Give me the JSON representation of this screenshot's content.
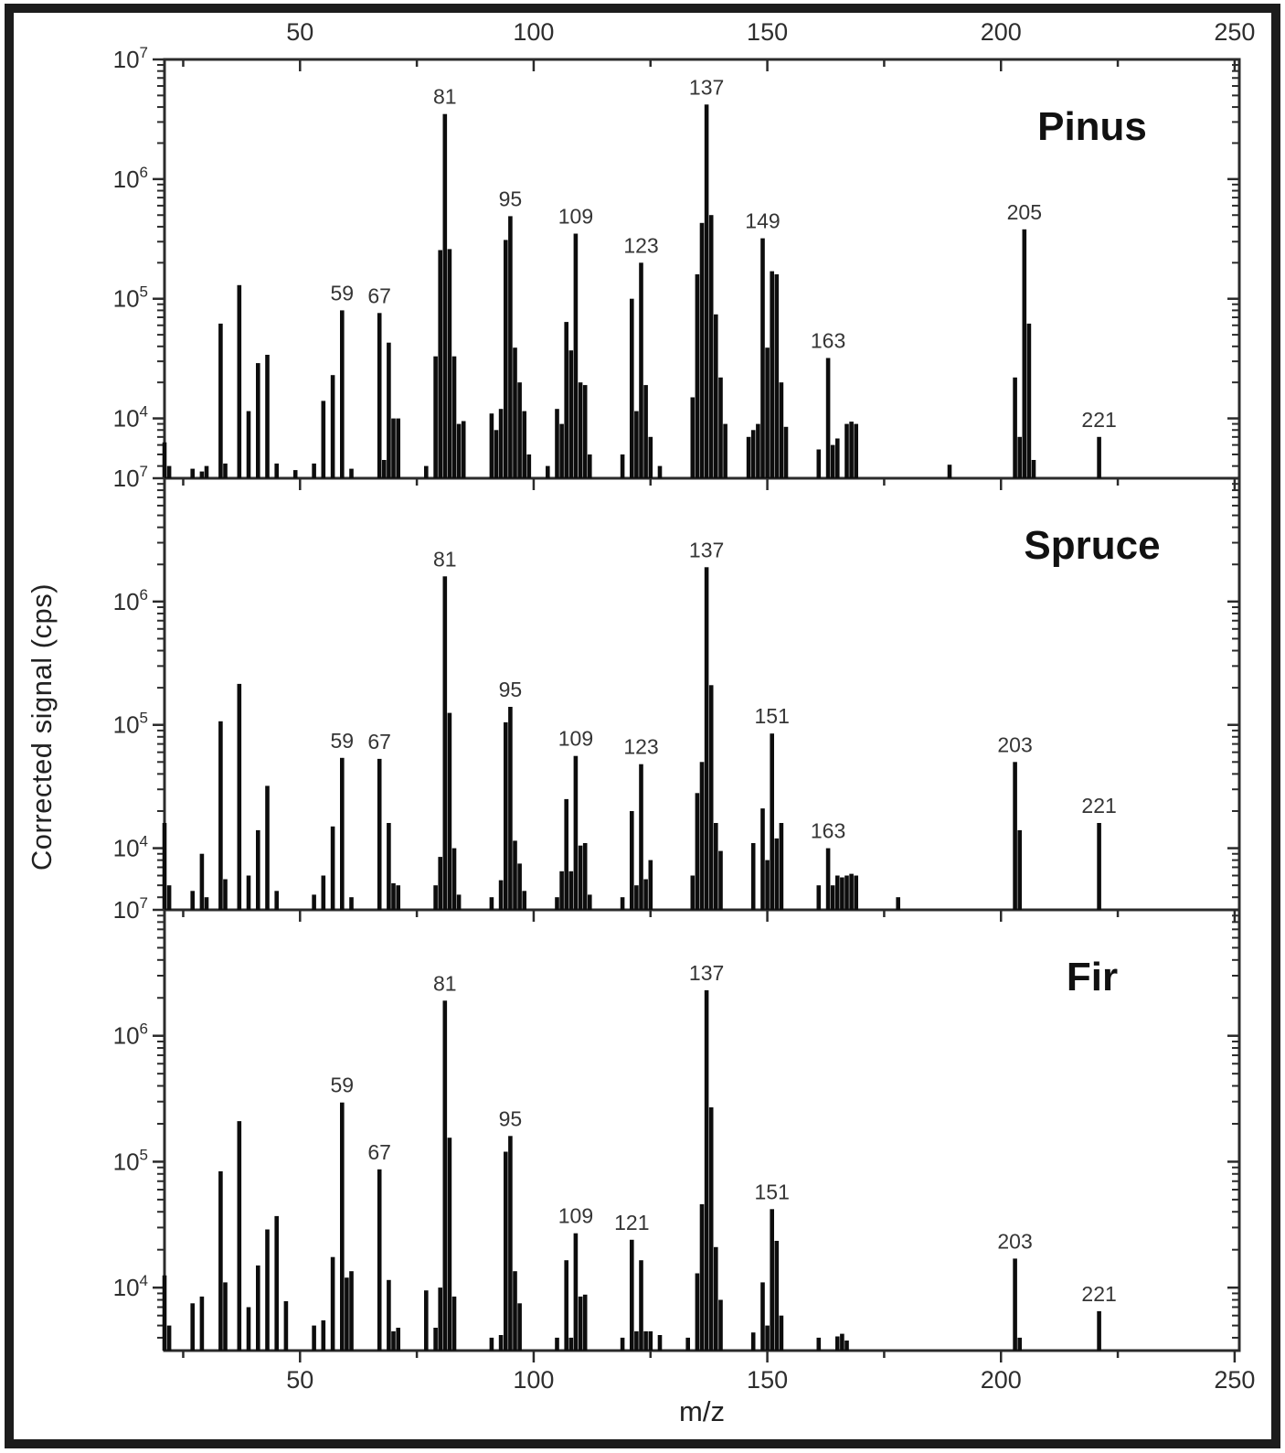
{
  "figure": {
    "xlabel": "m/z",
    "ylabel": "Corrected signal (cps)",
    "x_major_ticks": [
      50,
      100,
      150,
      200,
      250
    ],
    "x_minor_step": 25,
    "x_range": [
      21,
      251
    ],
    "y_log_range": [
      3.5,
      7
    ],
    "y_decades": [
      4,
      5,
      6,
      7
    ],
    "y_tick_base": "10",
    "grid": "off",
    "legend": "none",
    "colors": {
      "bar": "#0d0d0d",
      "axis": "#2b2b2b",
      "tick_text": "#2e2e2e",
      "peak_label_text": "#353535",
      "species_text": "#111111",
      "frame": "#1c1c1c",
      "background": "#ffffff"
    }
  },
  "chart_data": [
    {
      "type": "bar",
      "name": "Pinus",
      "x_field": "m/z",
      "y_field": "cps",
      "labeled_peaks": [
        59,
        67,
        81,
        95,
        109,
        123,
        137,
        149,
        163,
        205,
        221
      ],
      "peaks": [
        [
          21,
          6300
        ],
        [
          22,
          4000
        ],
        [
          27,
          3800
        ],
        [
          29,
          3600
        ],
        [
          30,
          4000
        ],
        [
          33,
          62000
        ],
        [
          34,
          4200
        ],
        [
          37,
          130000
        ],
        [
          39,
          11500
        ],
        [
          41,
          29000
        ],
        [
          43,
          34000
        ],
        [
          45,
          4200
        ],
        [
          49,
          3700
        ],
        [
          53,
          4200
        ],
        [
          55,
          14000
        ],
        [
          57,
          23000
        ],
        [
          59,
          80000
        ],
        [
          61,
          3800
        ],
        [
          67,
          76000
        ],
        [
          68,
          4500
        ],
        [
          69,
          43000
        ],
        [
          70,
          10000
        ],
        [
          71,
          10000
        ],
        [
          77,
          4000
        ],
        [
          79,
          33000
        ],
        [
          80,
          255000
        ],
        [
          81,
          3500000
        ],
        [
          82,
          260000
        ],
        [
          83,
          33000
        ],
        [
          84,
          9000
        ],
        [
          85,
          9500
        ],
        [
          91,
          11000
        ],
        [
          92,
          8000
        ],
        [
          93,
          12000
        ],
        [
          94,
          310000
        ],
        [
          95,
          490000
        ],
        [
          96,
          39000
        ],
        [
          97,
          20000
        ],
        [
          98,
          11500
        ],
        [
          99,
          5000
        ],
        [
          103,
          4000
        ],
        [
          105,
          12000
        ],
        [
          106,
          9000
        ],
        [
          107,
          64000
        ],
        [
          108,
          37000
        ],
        [
          109,
          350000
        ],
        [
          110,
          20000
        ],
        [
          111,
          19000
        ],
        [
          112,
          5000
        ],
        [
          119,
          5000
        ],
        [
          121,
          100000
        ],
        [
          122,
          11500
        ],
        [
          123,
          200000
        ],
        [
          124,
          19000
        ],
        [
          125,
          7000
        ],
        [
          127,
          4000
        ],
        [
          134,
          15000
        ],
        [
          135,
          160000
        ],
        [
          136,
          430000
        ],
        [
          137,
          4200000
        ],
        [
          138,
          500000
        ],
        [
          139,
          74000
        ],
        [
          140,
          22000
        ],
        [
          141,
          9000
        ],
        [
          146,
          7000
        ],
        [
          147,
          8000
        ],
        [
          148,
          9000
        ],
        [
          149,
          320000
        ],
        [
          150,
          39000
        ],
        [
          151,
          170000
        ],
        [
          152,
          160000
        ],
        [
          153,
          20000
        ],
        [
          154,
          8500
        ],
        [
          161,
          5500
        ],
        [
          163,
          32000
        ],
        [
          164,
          6000
        ],
        [
          165,
          6800
        ],
        [
          167,
          9000
        ],
        [
          168,
          9400
        ],
        [
          169,
          9000
        ],
        [
          189,
          4100
        ],
        [
          203,
          22000
        ],
        [
          204,
          7000
        ],
        [
          205,
          380000
        ],
        [
          206,
          62000
        ],
        [
          207,
          4500
        ],
        [
          221,
          7000
        ]
      ]
    },
    {
      "type": "bar",
      "name": "Spruce",
      "x_field": "m/z",
      "y_field": "cps",
      "labeled_peaks": [
        59,
        67,
        81,
        95,
        109,
        123,
        137,
        151,
        163,
        203,
        221
      ],
      "peaks": [
        [
          21,
          16000
        ],
        [
          22,
          5000
        ],
        [
          27,
          4500
        ],
        [
          29,
          9000
        ],
        [
          30,
          4000
        ],
        [
          33,
          107000
        ],
        [
          34,
          5600
        ],
        [
          37,
          215000
        ],
        [
          39,
          6000
        ],
        [
          41,
          14000
        ],
        [
          43,
          32000
        ],
        [
          45,
          4500
        ],
        [
          53,
          4200
        ],
        [
          55,
          6000
        ],
        [
          57,
          15000
        ],
        [
          59,
          54000
        ],
        [
          61,
          4000
        ],
        [
          67,
          53000
        ],
        [
          69,
          16000
        ],
        [
          70,
          5200
        ],
        [
          71,
          5000
        ],
        [
          79,
          5000
        ],
        [
          80,
          8500
        ],
        [
          81,
          1600000
        ],
        [
          82,
          125000
        ],
        [
          83,
          10000
        ],
        [
          84,
          4200
        ],
        [
          91,
          4000
        ],
        [
          93,
          5500
        ],
        [
          94,
          105000
        ],
        [
          95,
          140000
        ],
        [
          96,
          11500
        ],
        [
          97,
          7500
        ],
        [
          98,
          4500
        ],
        [
          105,
          4000
        ],
        [
          106,
          6500
        ],
        [
          107,
          25000
        ],
        [
          108,
          6500
        ],
        [
          109,
          56000
        ],
        [
          110,
          10500
        ],
        [
          111,
          11000
        ],
        [
          112,
          4200
        ],
        [
          119,
          4000
        ],
        [
          121,
          20000
        ],
        [
          122,
          5000
        ],
        [
          123,
          48000
        ],
        [
          124,
          5600
        ],
        [
          125,
          8000
        ],
        [
          134,
          6000
        ],
        [
          135,
          28000
        ],
        [
          136,
          50000
        ],
        [
          137,
          1900000
        ],
        [
          138,
          210000
        ],
        [
          139,
          16000
        ],
        [
          140,
          9500
        ],
        [
          147,
          11000
        ],
        [
          149,
          21000
        ],
        [
          150,
          8000
        ],
        [
          151,
          85000
        ],
        [
          152,
          12000
        ],
        [
          153,
          16000
        ],
        [
          161,
          5000
        ],
        [
          163,
          10000
        ],
        [
          164,
          5000
        ],
        [
          165,
          6000
        ],
        [
          166,
          5800
        ],
        [
          167,
          6000
        ],
        [
          168,
          6200
        ],
        [
          169,
          6000
        ],
        [
          178,
          4000
        ],
        [
          203,
          50000
        ],
        [
          204,
          14000
        ],
        [
          221,
          16000
        ]
      ]
    },
    {
      "type": "bar",
      "name": "Fir",
      "x_field": "m/z",
      "y_field": "cps",
      "labeled_peaks": [
        59,
        67,
        81,
        95,
        109,
        121,
        137,
        151,
        203,
        221
      ],
      "peaks": [
        [
          21,
          12500
        ],
        [
          22,
          5000
        ],
        [
          27,
          7500
        ],
        [
          29,
          8500
        ],
        [
          33,
          84000
        ],
        [
          34,
          11000
        ],
        [
          37,
          210000
        ],
        [
          39,
          7000
        ],
        [
          41,
          15000
        ],
        [
          43,
          29000
        ],
        [
          45,
          37000
        ],
        [
          47,
          7800
        ],
        [
          53,
          5000
        ],
        [
          55,
          5500
        ],
        [
          57,
          17500
        ],
        [
          59,
          295000
        ],
        [
          60,
          12000
        ],
        [
          61,
          13500
        ],
        [
          67,
          87000
        ],
        [
          69,
          11500
        ],
        [
          70,
          4500
        ],
        [
          71,
          4800
        ],
        [
          77,
          9500
        ],
        [
          79,
          4800
        ],
        [
          80,
          10000
        ],
        [
          81,
          1900000
        ],
        [
          82,
          155000
        ],
        [
          83,
          8500
        ],
        [
          91,
          4000
        ],
        [
          93,
          4200
        ],
        [
          94,
          120000
        ],
        [
          95,
          160000
        ],
        [
          96,
          13500
        ],
        [
          97,
          7500
        ],
        [
          105,
          4000
        ],
        [
          107,
          16500
        ],
        [
          108,
          4000
        ],
        [
          109,
          27000
        ],
        [
          110,
          8500
        ],
        [
          111,
          8800
        ],
        [
          119,
          4000
        ],
        [
          121,
          24000
        ],
        [
          122,
          4500
        ],
        [
          123,
          16500
        ],
        [
          124,
          4500
        ],
        [
          125,
          4500
        ],
        [
          127,
          4200
        ],
        [
          133,
          4000
        ],
        [
          135,
          13000
        ],
        [
          136,
          46000
        ],
        [
          137,
          2300000
        ],
        [
          138,
          270000
        ],
        [
          139,
          21000
        ],
        [
          140,
          8000
        ],
        [
          147,
          4400
        ],
        [
          149,
          11000
        ],
        [
          150,
          5000
        ],
        [
          151,
          42000
        ],
        [
          152,
          23500
        ],
        [
          153,
          6000
        ],
        [
          161,
          4000
        ],
        [
          165,
          4100
        ],
        [
          166,
          4300
        ],
        [
          167,
          3800
        ],
        [
          203,
          17000
        ],
        [
          204,
          4000
        ],
        [
          221,
          6500
        ]
      ]
    }
  ]
}
